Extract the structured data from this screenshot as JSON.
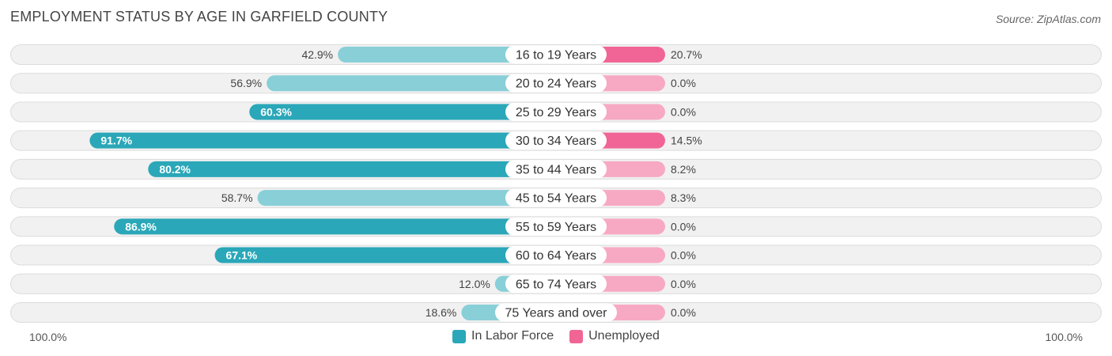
{
  "header": {
    "title": "EMPLOYMENT STATUS BY AGE IN GARFIELD COUNTY",
    "source": "Source: ZipAtlas.com"
  },
  "colors": {
    "labor_strong": "#2aa7b8",
    "labor_light": "#88cfd8",
    "unemployed_strong": "#f06595",
    "unemployed_light": "#f7a9c3",
    "row_bg": "#f1f1f1",
    "row_border": "#dcdcdc"
  },
  "chart_data": {
    "type": "bar",
    "orientation": "horizontal-diverging",
    "categories": [
      "16 to 19 Years",
      "20 to 24 Years",
      "25 to 29 Years",
      "30 to 34 Years",
      "35 to 44 Years",
      "45 to 54 Years",
      "55 to 59 Years",
      "60 to 64 Years",
      "65 to 74 Years",
      "75 Years and over"
    ],
    "series": [
      {
        "name": "In Labor Force",
        "values": [
          42.9,
          56.9,
          60.3,
          91.7,
          80.2,
          58.7,
          86.9,
          67.1,
          12.0,
          18.6
        ],
        "labels": [
          "42.9%",
          "56.9%",
          "60.3%",
          "91.7%",
          "80.2%",
          "58.7%",
          "86.9%",
          "67.1%",
          "12.0%",
          "18.6%"
        ]
      },
      {
        "name": "Unemployed",
        "values": [
          20.7,
          0.0,
          0.0,
          14.5,
          8.2,
          8.3,
          0.0,
          0.0,
          0.0,
          0.0
        ],
        "labels": [
          "20.7%",
          "0.0%",
          "0.0%",
          "14.5%",
          "8.2%",
          "8.3%",
          "0.0%",
          "0.0%",
          "0.0%",
          "0.0%"
        ]
      }
    ],
    "xlim": [
      -100,
      100
    ],
    "axis_left_label": "100.0%",
    "axis_right_label": "100.0%",
    "legend": [
      "In Labor Force",
      "Unemployed"
    ],
    "legend_position": "bottom-center"
  }
}
